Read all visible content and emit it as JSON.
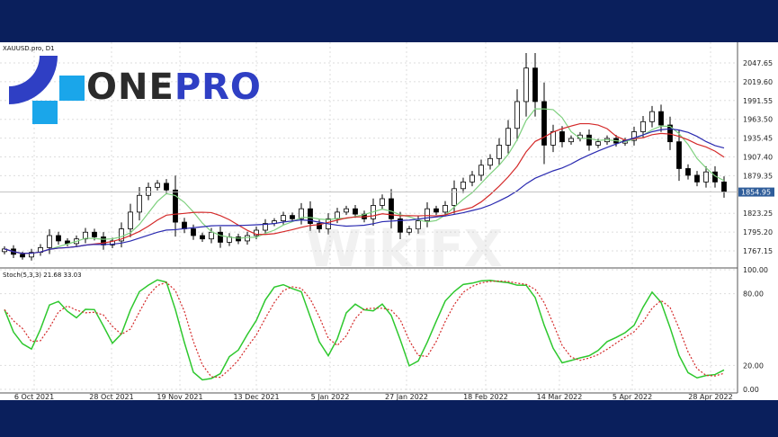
{
  "chart_data": {
    "type": "candlestick",
    "symbol_label": "XAUUSD.pro, D1",
    "x_tick_labels": [
      "6 Oct 2021",
      "28 Oct 2021",
      "19 Nov 2021",
      "13 Dec 2021",
      "5 Jan 2022",
      "27 Jan 2022",
      "18 Feb 2022",
      "14 Mar 2022",
      "5 Apr 2022",
      "28 Apr 2022"
    ],
    "y_tick_labels": [
      "2047.65",
      "2019.60",
      "1991.55",
      "1963.50",
      "1935.45",
      "1907.40",
      "1879.35",
      "1823.25",
      "1795.20",
      "1767.15"
    ],
    "ylim": [
      1740,
      2075
    ],
    "current_price": "1854.95",
    "close": [
      1770,
      1762,
      1758,
      1765,
      1772,
      1790,
      1782,
      1778,
      1785,
      1795,
      1788,
      1776,
      1782,
      1800,
      1825,
      1850,
      1862,
      1868,
      1858,
      1810,
      1800,
      1790,
      1785,
      1795,
      1780,
      1788,
      1782,
      1790,
      1798,
      1808,
      1812,
      1820,
      1815,
      1830,
      1808,
      1800,
      1815,
      1825,
      1830,
      1822,
      1815,
      1835,
      1845,
      1815,
      1795,
      1800,
      1812,
      1830,
      1825,
      1835,
      1860,
      1870,
      1880,
      1895,
      1905,
      1925,
      1950,
      1990,
      2040,
      1990,
      1925,
      1945,
      1930,
      1935,
      1940,
      1925,
      1930,
      1935,
      1928,
      1932,
      1945,
      1960,
      1975,
      1955,
      1930,
      1890,
      1880,
      1870,
      1885,
      1870,
      1854.95
    ],
    "moving_average_colors": {
      "fast": "#7ed07e",
      "medium": "#d42a2a",
      "slow": "#2a2ab0"
    },
    "indicator": {
      "label": "Stoch(5,3,3) 21.68 33.03",
      "y_tick_labels": [
        "100.00",
        "80.00",
        "20.00",
        "0.00"
      ],
      "ylim": [
        0,
        100
      ],
      "main_color": "#2ec82e",
      "signal_color": "#d42a2a"
    },
    "grid": true
  },
  "logo": {
    "part1": "ONE",
    "part2": "PRO",
    "colors": {
      "dark": "#2f3fc4",
      "light": "#1aa6ea"
    }
  },
  "watermark": "WikiFX"
}
